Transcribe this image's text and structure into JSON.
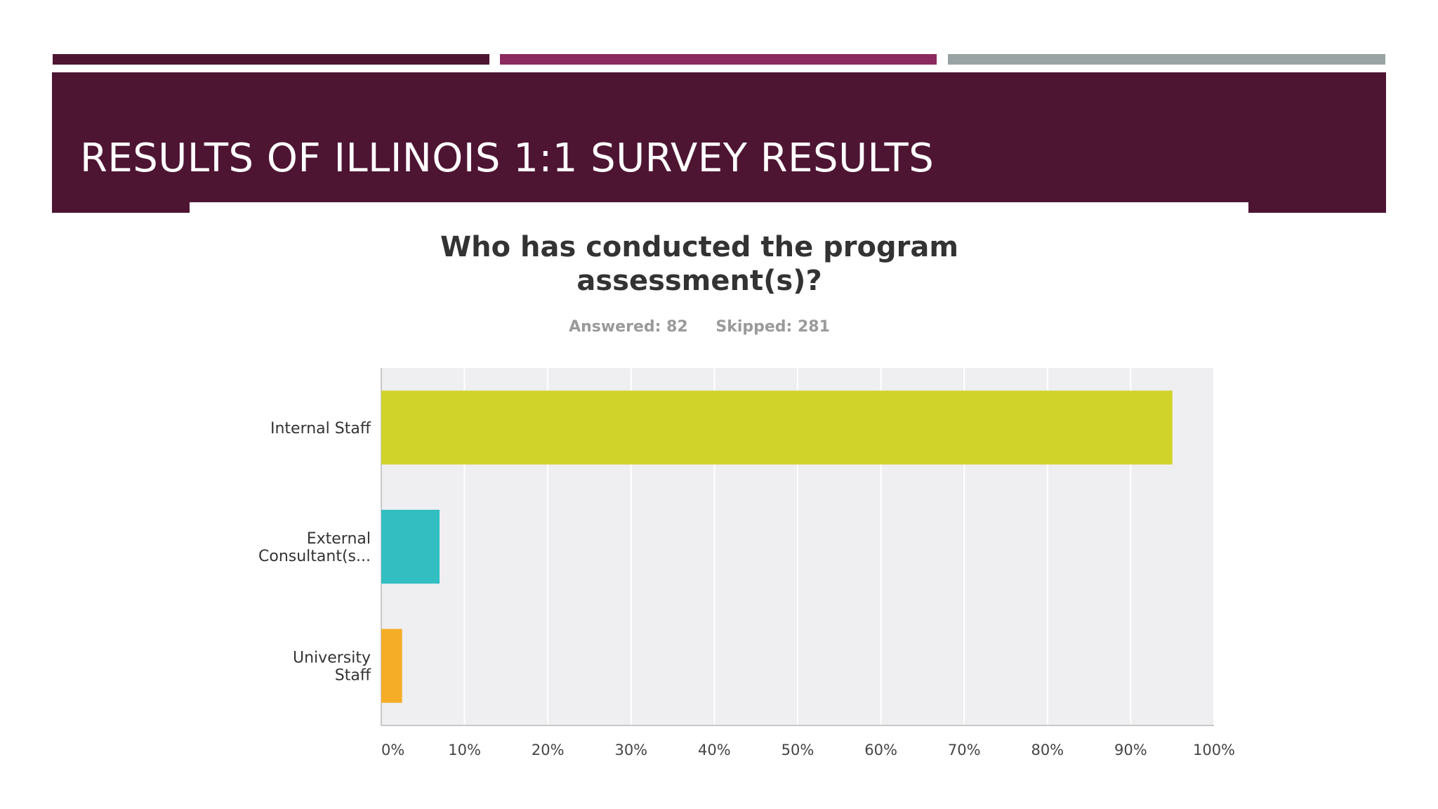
{
  "colors": {
    "accent_dark": "#4e1533",
    "accent_magenta": "#8b2a5e",
    "accent_gray": "#9aa3a3",
    "title_band": "#4e1533",
    "plot_background": "#efeef1",
    "gridline": "#ffffff",
    "axis": "#c8c8c8"
  },
  "slide": {
    "title": "RESULTS OF ILLINOIS 1:1 SURVEY RESULTS"
  },
  "survey": {
    "answered": "Answered: 82",
    "skipped": "Skipped: 281"
  },
  "chart_data": {
    "type": "bar",
    "orientation": "horizontal",
    "title": "Who has conducted the program assessment(s)?",
    "title_lines": [
      "Who has conducted the program",
      "assessment(s)?"
    ],
    "categories": [
      [
        "Internal Staff"
      ],
      [
        "External",
        "Consultant(s..."
      ],
      [
        "University",
        "Staff"
      ]
    ],
    "values": [
      95,
      7,
      2.5
    ],
    "colors": [
      "#d0d42a",
      "#33bec1",
      "#f5ad27"
    ],
    "xlim": [
      0,
      100
    ],
    "xticks": [
      0,
      10,
      20,
      30,
      40,
      50,
      60,
      70,
      80,
      90,
      100
    ],
    "xtick_labels": [
      "0%",
      "10%",
      "20%",
      "30%",
      "40%",
      "50%",
      "60%",
      "70%",
      "80%",
      "90%",
      "100%"
    ],
    "grid": true
  }
}
